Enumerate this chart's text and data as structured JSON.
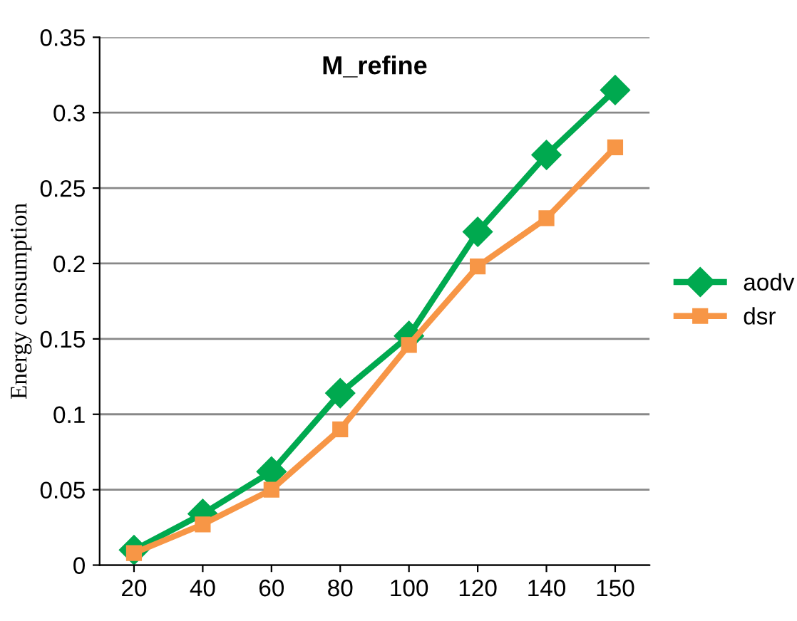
{
  "chart_data": {
    "type": "line",
    "title": "M_refine",
    "ylabel": "Energy consumption",
    "categories": [
      "20",
      "40",
      "60",
      "80",
      "100",
      "120",
      "140",
      "150"
    ],
    "series": [
      {
        "name": "aodv",
        "color": "#00a94f",
        "marker": "diamond",
        "values": [
          0.01,
          0.034,
          0.062,
          0.114,
          0.152,
          0.221,
          0.272,
          0.315
        ]
      },
      {
        "name": "dsr",
        "color": "#f79646",
        "marker": "square",
        "values": [
          0.008,
          0.027,
          0.05,
          0.09,
          0.146,
          0.198,
          0.23,
          0.277
        ]
      }
    ],
    "ylim": [
      0,
      0.35
    ],
    "yticks": [
      0,
      {
        "value": 0.05,
        "label": "0.05"
      },
      {
        "value": 0.1,
        "label": "0.1"
      },
      {
        "value": 0.15,
        "label": "0.15"
      },
      {
        "value": 0.2,
        "label": "0.2"
      },
      {
        "value": 0.25,
        "label": "0.25"
      },
      {
        "value": 0.3,
        "label": "0.3"
      },
      {
        "value": 0.35,
        "label": "0.35"
      }
    ],
    "grid": "y",
    "legend": "right",
    "line_style": "solid"
  }
}
